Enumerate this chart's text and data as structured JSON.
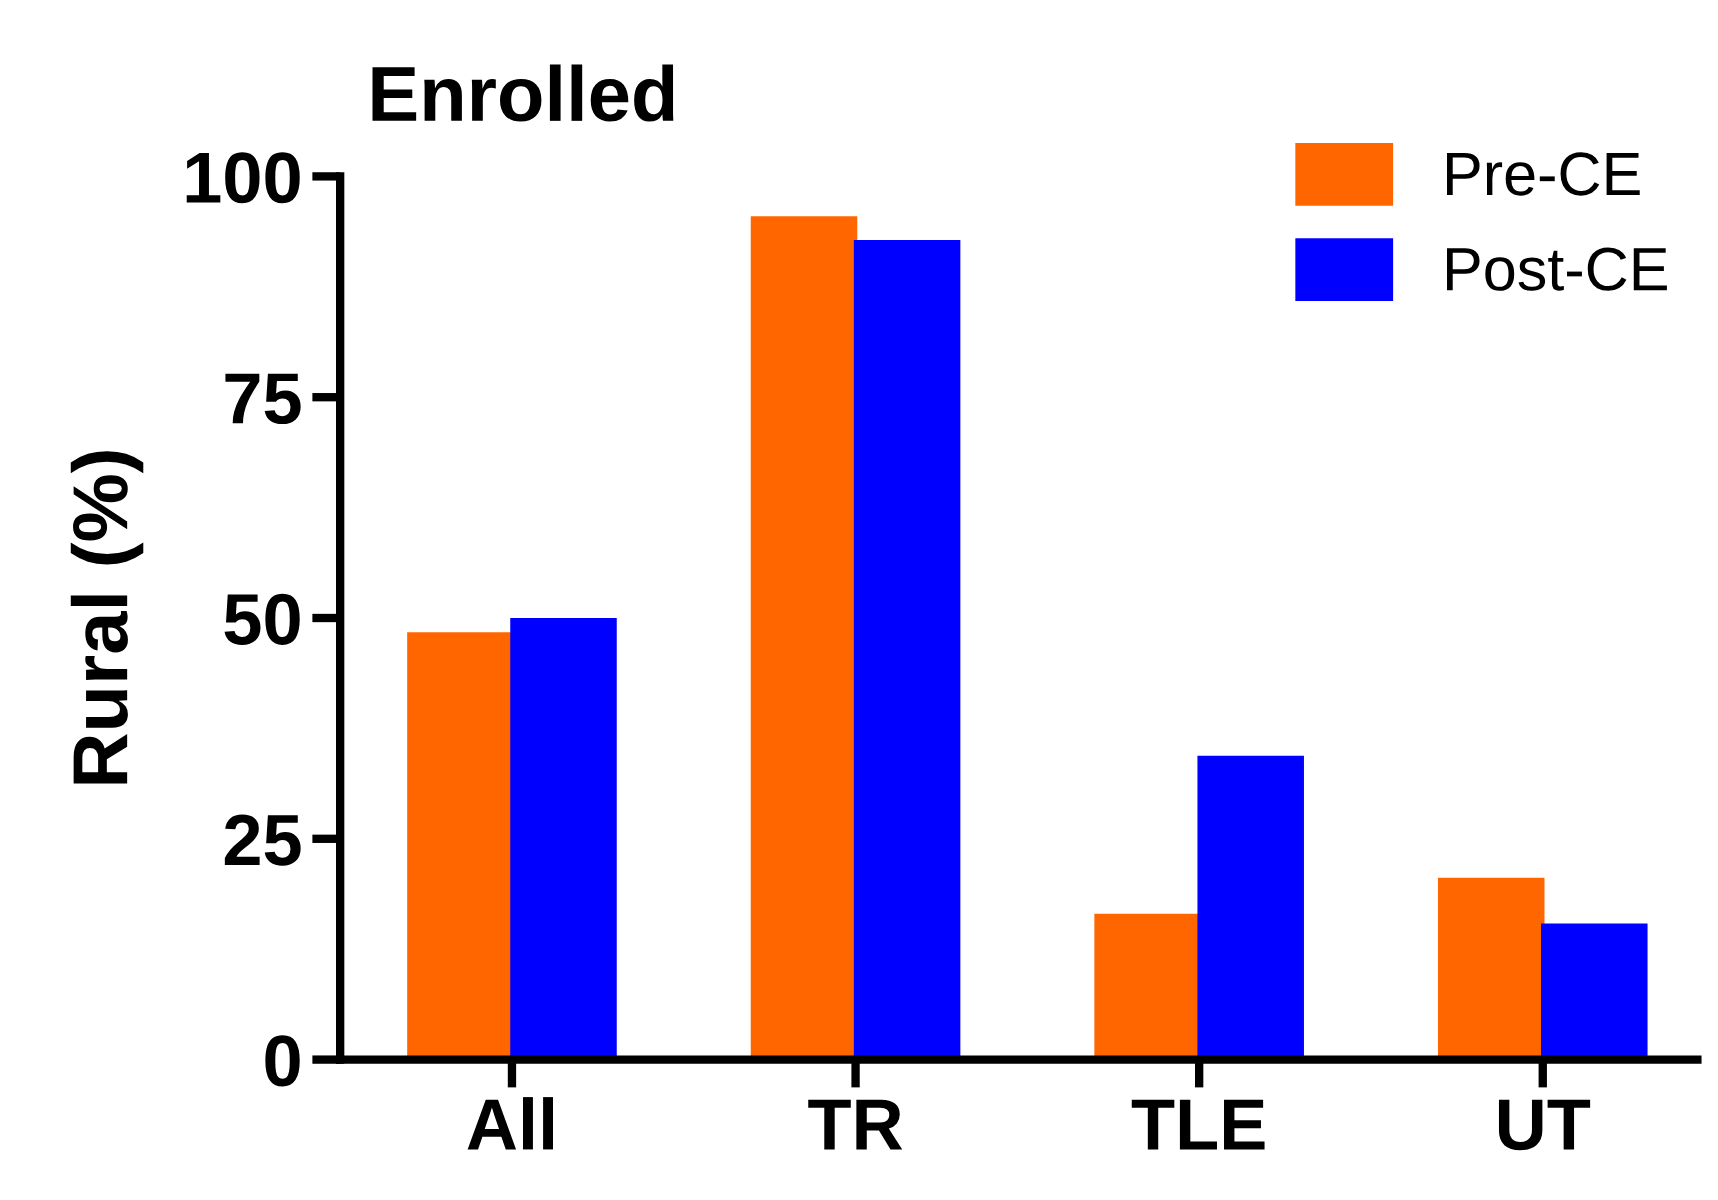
{
  "chart_data": {
    "type": "bar",
    "title": "Enrolled",
    "ylabel": "Rural (%)",
    "categories": [
      "All",
      "TR",
      "TLE",
      "UT"
    ],
    "series": [
      {
        "name": "Pre-CE",
        "color": "#ff6600",
        "values": [
          48.4,
          95.5,
          16.5,
          20.6
        ]
      },
      {
        "name": "Post-CE",
        "color": "#0000ff",
        "values": [
          50.0,
          92.8,
          34.4,
          15.4
        ]
      }
    ],
    "ylim": [
      0,
      100
    ],
    "yticks": [
      0,
      25,
      50,
      75,
      100
    ],
    "grid": false,
    "legend": "top right"
  }
}
